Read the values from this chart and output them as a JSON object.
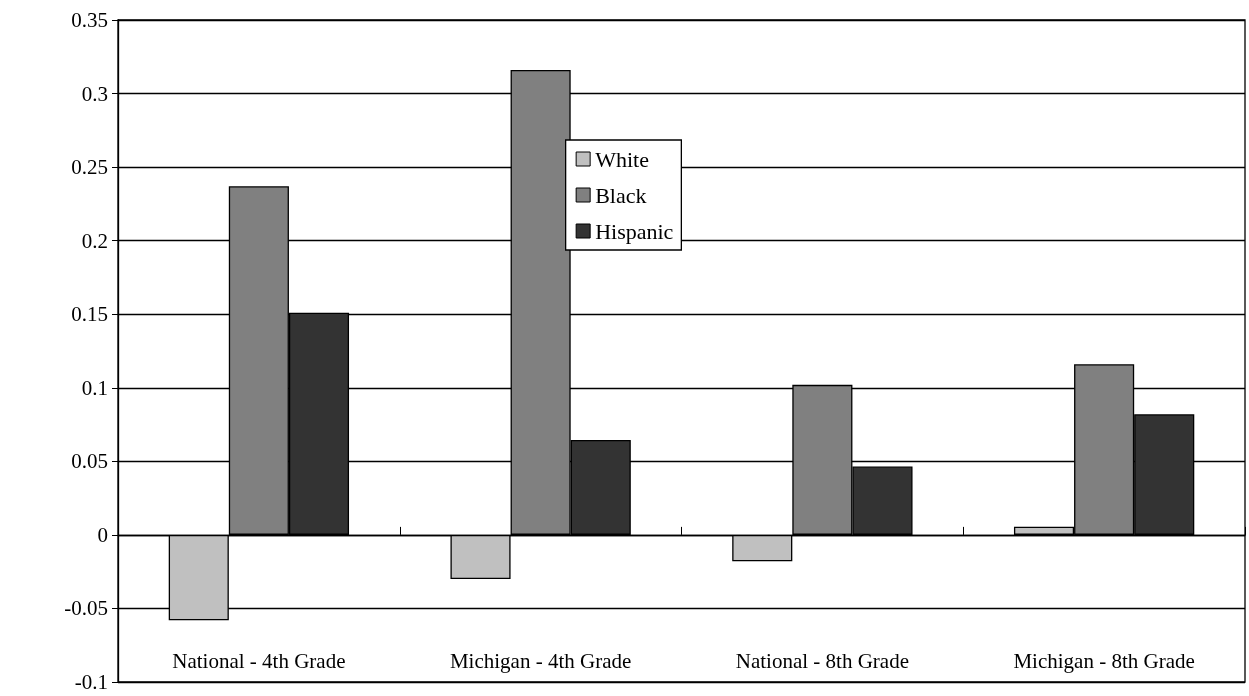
{
  "chart_data": {
    "type": "bar",
    "categories": [
      "National - 4th Grade",
      "Michigan - 4th Grade",
      "National - 8th Grade",
      "Michigan - 8th Grade"
    ],
    "series": [
      {
        "name": "White",
        "color": "#c0c0c0",
        "values": [
          -0.058,
          -0.03,
          -0.018,
          0.0055
        ]
      },
      {
        "name": "Black",
        "color": "#808080",
        "values": [
          0.237,
          0.316,
          0.102,
          0.116
        ]
      },
      {
        "name": "Hispanic",
        "color": "#333333",
        "values": [
          0.151,
          0.0645,
          0.0465,
          0.082
        ]
      }
    ],
    "ylim": [
      -0.1,
      0.35
    ],
    "yticks": [
      -0.1,
      -0.05,
      0,
      0.05,
      0.1,
      0.15,
      0.2,
      0.25,
      0.3,
      0.35
    ],
    "grid": "y",
    "legend": "top"
  }
}
